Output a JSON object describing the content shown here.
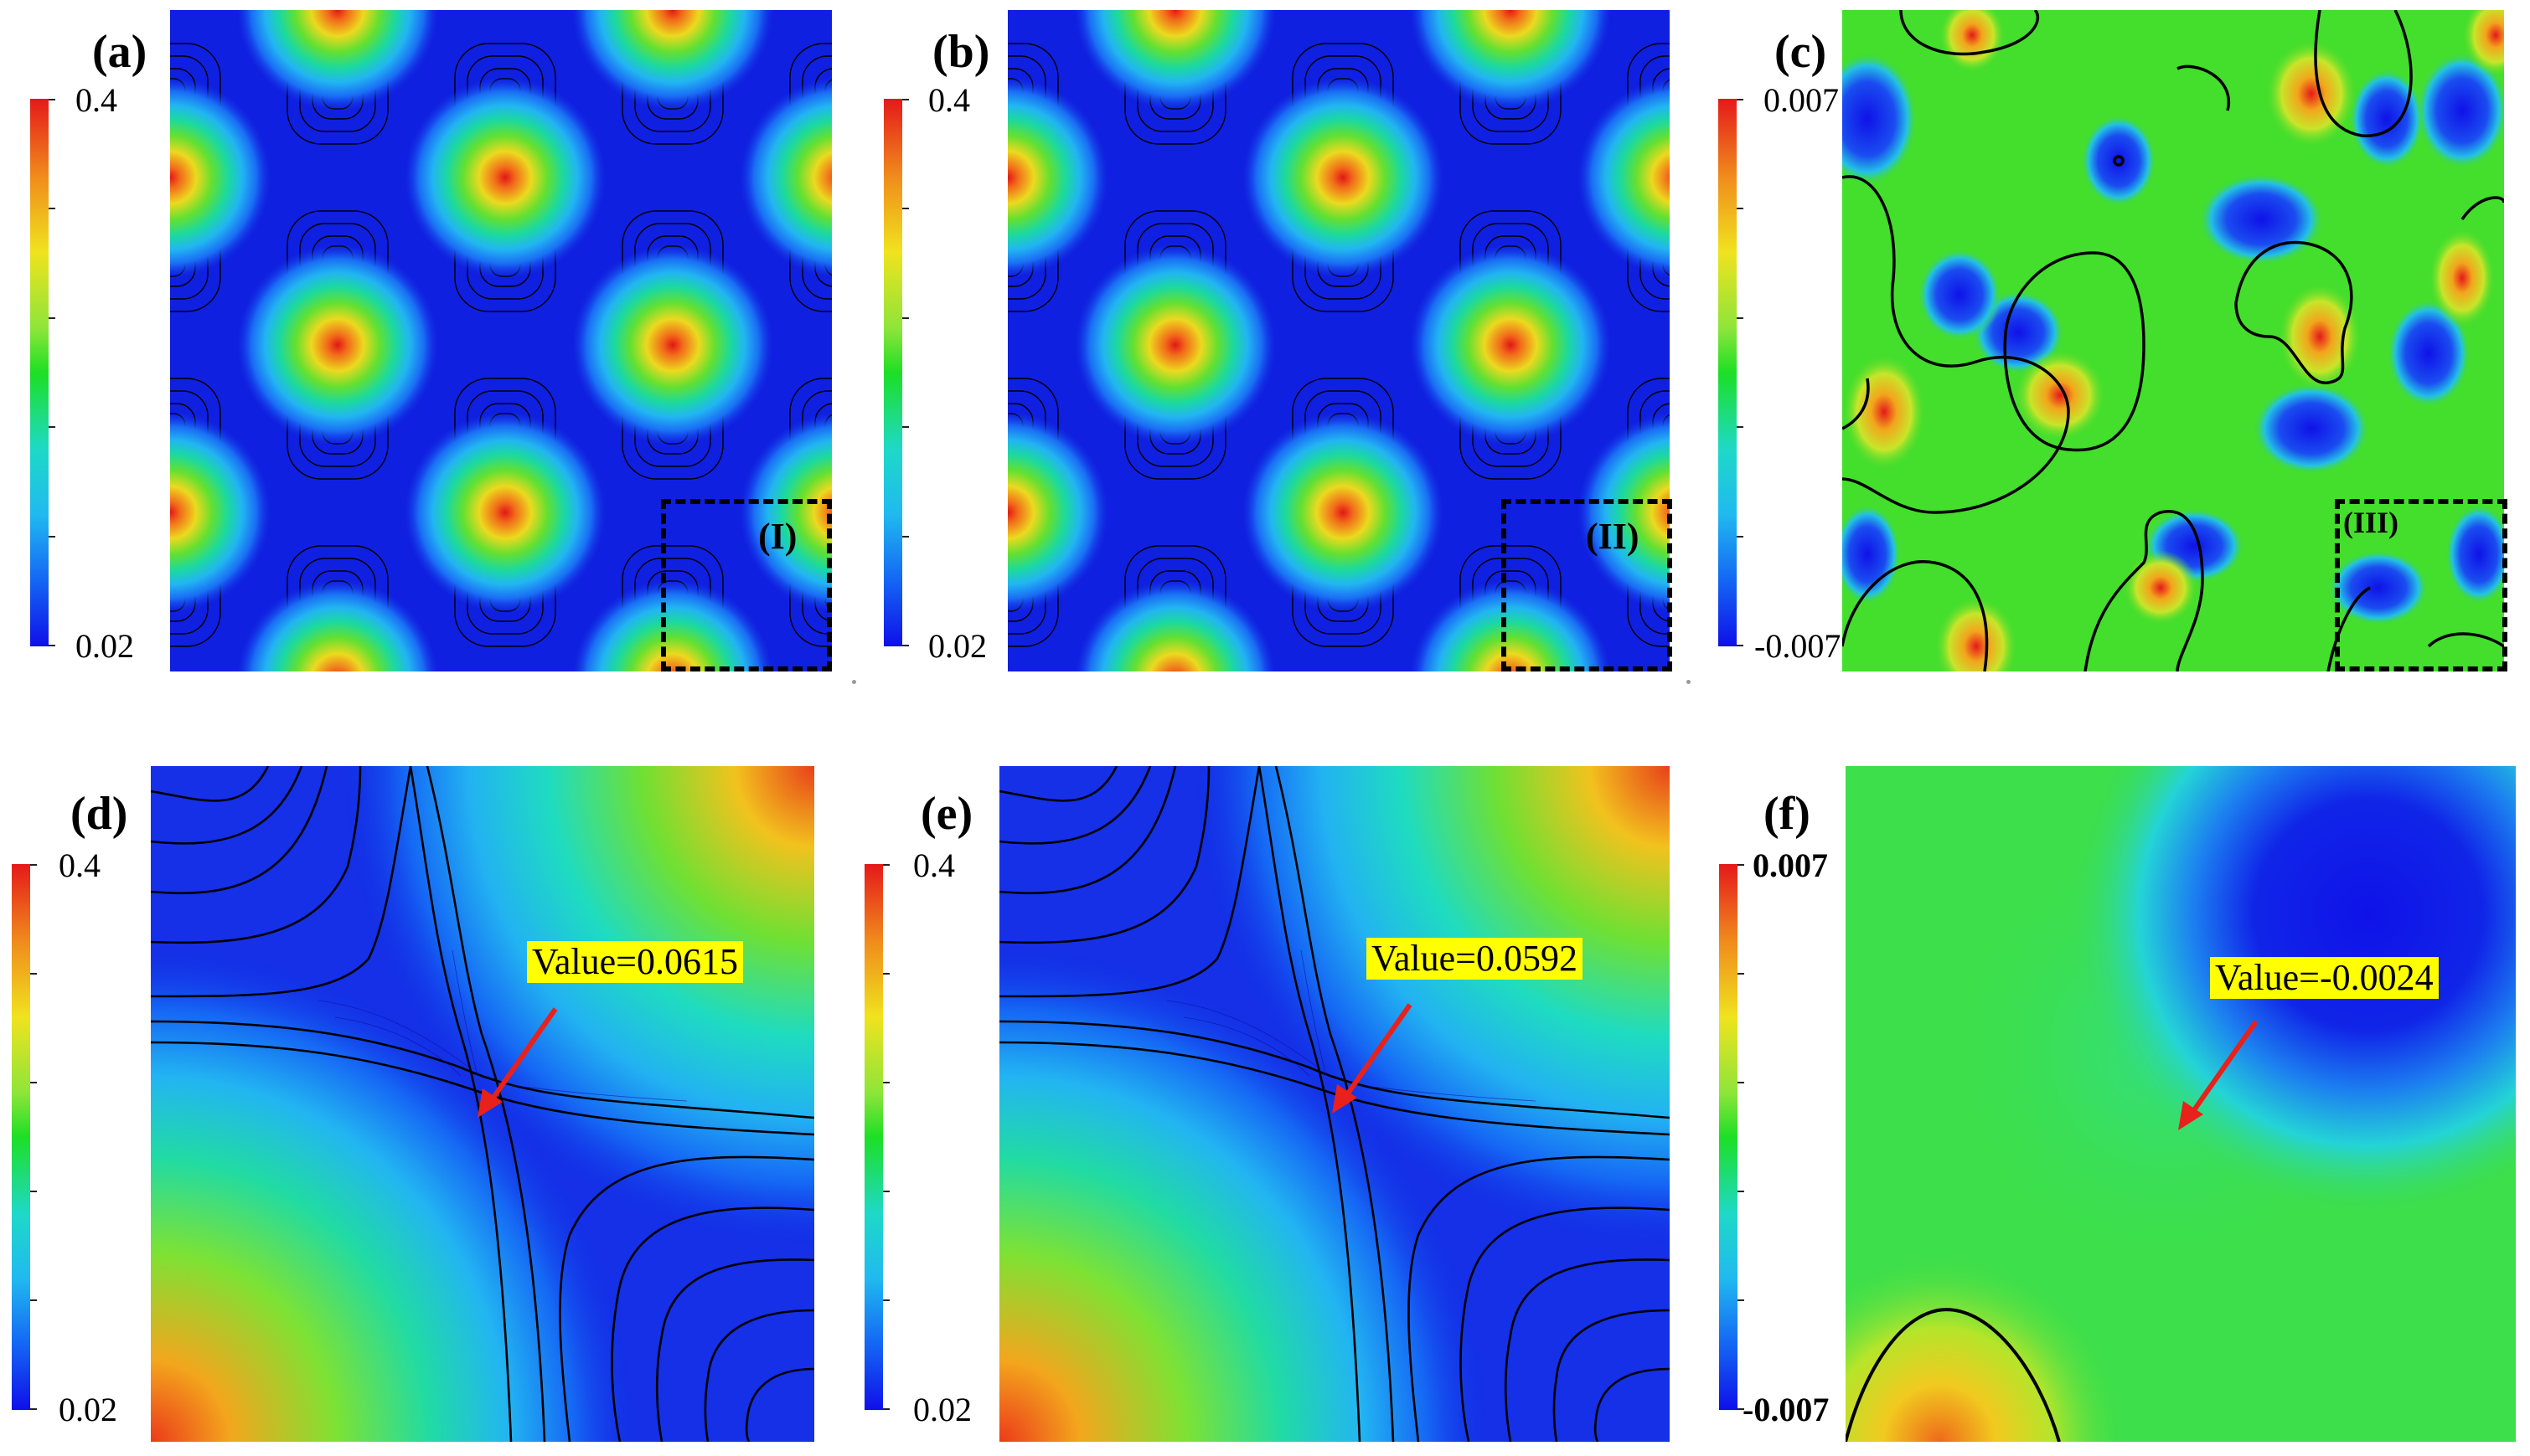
{
  "figure": {
    "panels": [
      {
        "key": "a",
        "label": "(a)",
        "colorbar": {
          "max": "0.4",
          "min": "0.02"
        },
        "inset_label": "(I)"
      },
      {
        "key": "b",
        "label": "(b)",
        "colorbar": {
          "max": "0.4",
          "min": "0.02"
        },
        "inset_label": "(II)"
      },
      {
        "key": "c",
        "label": "(c)",
        "colorbar": {
          "max": "0.007",
          "min": "-0.007"
        },
        "inset_label": "(III)"
      },
      {
        "key": "d",
        "label": "(d)",
        "colorbar": {
          "max": "0.4",
          "min": "0.02"
        },
        "value_label": "Value=0.0615"
      },
      {
        "key": "e",
        "label": "(e)",
        "colorbar": {
          "max": "0.4",
          "min": "0.02"
        },
        "value_label": "Value=0.0592"
      },
      {
        "key": "f",
        "label": "(f)",
        "colorbar": {
          "max": "0.007",
          "min": "-0.007"
        },
        "value_label": "Value=-0.0024"
      }
    ],
    "colors": {
      "high": "#e5191a",
      "mid": "#1ddf25",
      "low": "#0f0fe9",
      "label_highlight": "#ffff00",
      "arrow": "#e8211b"
    }
  }
}
